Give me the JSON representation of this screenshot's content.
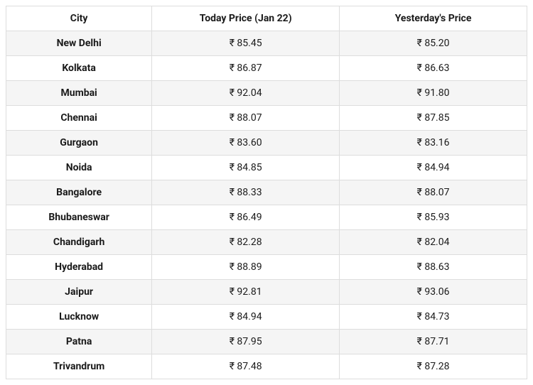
{
  "table": {
    "type": "table",
    "columns": [
      "City",
      "Today Price (Jan 22)",
      "Yesterday's Price"
    ],
    "column_widths_pct": [
      28,
      36,
      36
    ],
    "header_background": "#ffffff",
    "row_stripe_odd": "#f5f5f5",
    "row_stripe_even": "#ffffff",
    "border_color": "#dddddd",
    "text_color": "#1a1a1a",
    "font_size_pt": 10.5,
    "currency_prefix": "₹ ",
    "rows": [
      {
        "city": "New Delhi",
        "today": "₹ 85.45",
        "yesterday": "₹ 85.20"
      },
      {
        "city": "Kolkata",
        "today": "₹ 86.87",
        "yesterday": "₹ 86.63"
      },
      {
        "city": "Mumbai",
        "today": "₹ 92.04",
        "yesterday": "₹ 91.80"
      },
      {
        "city": "Chennai",
        "today": "₹ 88.07",
        "yesterday": "₹ 87.85"
      },
      {
        "city": "Gurgaon",
        "today": "₹ 83.60",
        "yesterday": "₹ 83.16"
      },
      {
        "city": "Noida",
        "today": "₹ 84.85",
        "yesterday": "₹ 84.94"
      },
      {
        "city": "Bangalore",
        "today": "₹ 88.33",
        "yesterday": "₹ 88.07"
      },
      {
        "city": "Bhubaneswar",
        "today": "₹ 86.49",
        "yesterday": "₹ 85.93"
      },
      {
        "city": "Chandigarh",
        "today": "₹ 82.28",
        "yesterday": "₹ 82.04"
      },
      {
        "city": "Hyderabad",
        "today": "₹ 88.89",
        "yesterday": "₹ 88.63"
      },
      {
        "city": "Jaipur",
        "today": "₹ 92.81",
        "yesterday": "₹ 93.06"
      },
      {
        "city": "Lucknow",
        "today": "₹ 84.94",
        "yesterday": "₹ 84.73"
      },
      {
        "city": "Patna",
        "today": "₹ 87.95",
        "yesterday": "₹ 87.71"
      },
      {
        "city": "Trivandrum",
        "today": "₹ 87.48",
        "yesterday": "₹ 87.28"
      }
    ]
  }
}
